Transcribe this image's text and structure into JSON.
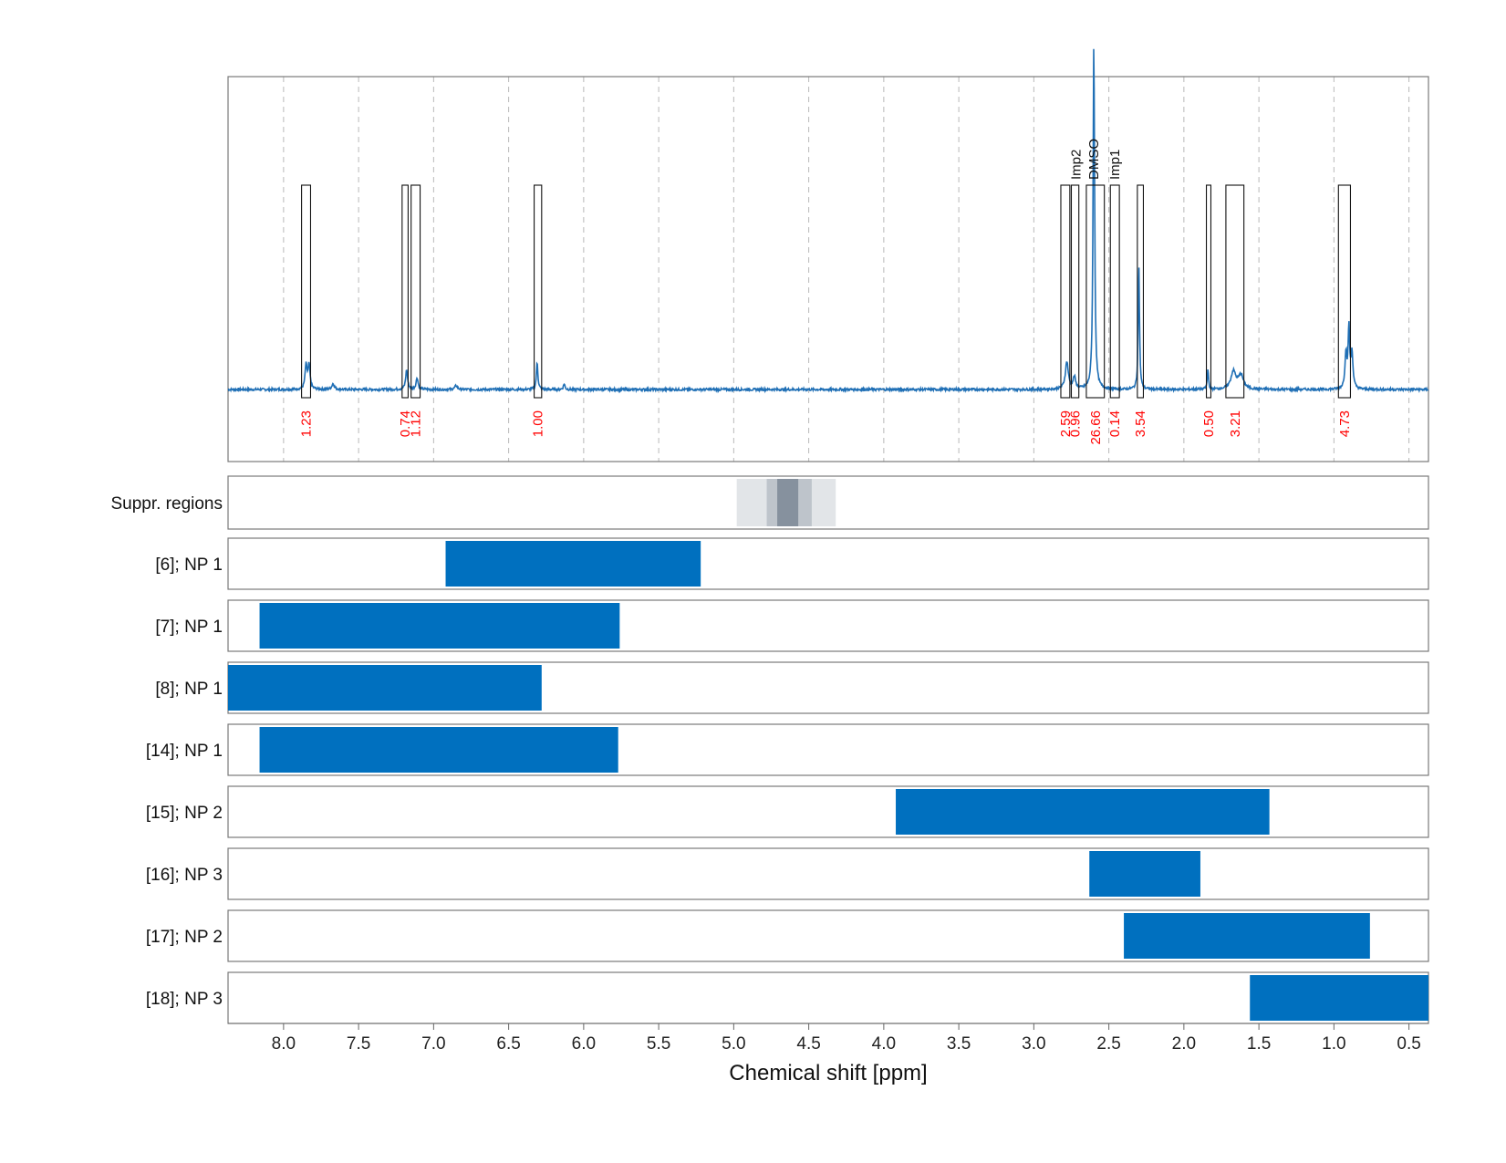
{
  "chart_data": {
    "type": "nmr-spectrum-with-range-tracks",
    "xlabel": "Chemical shift [ppm]",
    "xlim": [
      8.37,
      0.37
    ],
    "xticks": [
      8.0,
      7.5,
      7.0,
      6.5,
      6.0,
      5.5,
      5.0,
      4.5,
      4.0,
      3.5,
      3.0,
      2.5,
      2.0,
      1.5,
      1.0,
      0.5
    ],
    "xtick_labels": [
      "8.0",
      "7.5",
      "7.0",
      "6.5",
      "6.0",
      "5.5",
      "5.0",
      "4.5",
      "4.0",
      "3.5",
      "3.0",
      "2.5",
      "2.0",
      "1.5",
      "1.0",
      "0.5"
    ],
    "line_color": "#1f6fb5",
    "spectrum": {
      "baseline": 0.0,
      "ylim": [
        -0.3,
        1.0
      ],
      "peaks": [
        {
          "ppm": 7.85,
          "height": 0.06,
          "width": 0.008
        },
        {
          "ppm": 7.83,
          "height": 0.06,
          "width": 0.008
        },
        {
          "ppm": 7.67,
          "height": 0.015,
          "width": 0.01
        },
        {
          "ppm": 7.18,
          "height": 0.05,
          "width": 0.008
        },
        {
          "ppm": 7.11,
          "height": 0.03,
          "width": 0.008
        },
        {
          "ppm": 6.85,
          "height": 0.01,
          "width": 0.01
        },
        {
          "ppm": 6.31,
          "height": 0.07,
          "width": 0.006
        },
        {
          "ppm": 6.13,
          "height": 0.015,
          "width": 0.006
        },
        {
          "ppm": 2.78,
          "height": 0.07,
          "width": 0.012
        },
        {
          "ppm": 2.73,
          "height": 0.03,
          "width": 0.01
        },
        {
          "ppm": 2.6,
          "height": 0.88,
          "width": 0.006
        },
        {
          "ppm": 2.3,
          "height": 0.32,
          "width": 0.005
        },
        {
          "ppm": 1.84,
          "height": 0.05,
          "width": 0.005
        },
        {
          "ppm": 1.67,
          "height": 0.045,
          "width": 0.02
        },
        {
          "ppm": 1.62,
          "height": 0.035,
          "width": 0.02
        },
        {
          "ppm": 0.92,
          "height": 0.09,
          "width": 0.008
        },
        {
          "ppm": 0.9,
          "height": 0.15,
          "width": 0.006
        },
        {
          "ppm": 0.88,
          "height": 0.09,
          "width": 0.008
        }
      ]
    },
    "integration_regions": [
      {
        "from": 7.88,
        "to": 7.82,
        "value": "1.23"
      },
      {
        "from": 7.21,
        "to": 7.17,
        "value": "0.74"
      },
      {
        "from": 7.15,
        "to": 7.09,
        "value": "1.12"
      },
      {
        "from": 6.33,
        "to": 6.28,
        "value": "1.00"
      },
      {
        "from": 2.82,
        "to": 2.76,
        "value": "2.59"
      },
      {
        "from": 2.75,
        "to": 2.7,
        "value": "0.96"
      },
      {
        "from": 2.65,
        "to": 2.53,
        "value": "26.66"
      },
      {
        "from": 2.49,
        "to": 2.43,
        "value": "0.14"
      },
      {
        "from": 2.31,
        "to": 2.27,
        "value": "3.54"
      },
      {
        "from": 1.85,
        "to": 1.82,
        "value": "0.50"
      },
      {
        "from": 1.72,
        "to": 1.6,
        "value": "3.21"
      },
      {
        "from": 0.97,
        "to": 0.89,
        "value": "4.73"
      }
    ],
    "peak_annotations": [
      {
        "ppm": 2.72,
        "label": "Imp2"
      },
      {
        "ppm": 2.6,
        "label": "DMSO"
      },
      {
        "ppm": 2.46,
        "label": "Imp1"
      }
    ],
    "suppression_label": "Suppr. regions",
    "suppression_bands": [
      {
        "from": 4.98,
        "to": 4.32,
        "opacity": 0.18
      },
      {
        "from": 4.78,
        "to": 4.48,
        "opacity": 0.28
      },
      {
        "from": 4.71,
        "to": 4.57,
        "opacity": 0.6
      }
    ],
    "suppression_color": "#607080",
    "range_tracks": [
      {
        "label": "[6]; NP 1",
        "from": 6.92,
        "to": 5.22
      },
      {
        "label": "[7]; NP 1",
        "from": 8.16,
        "to": 5.76
      },
      {
        "label": "[8]; NP 1",
        "from": 8.37,
        "to": 6.28
      },
      {
        "label": "[14]; NP 1",
        "from": 8.16,
        "to": 5.77
      },
      {
        "label": "[15]; NP 2",
        "from": 3.92,
        "to": 1.43
      },
      {
        "label": "[16]; NP 3",
        "from": 2.63,
        "to": 1.89
      },
      {
        "label": "[17]; NP 2",
        "from": 2.4,
        "to": 0.76
      },
      {
        "label": "[18]; NP 3",
        "from": 1.56,
        "to": 0.37
      }
    ],
    "track_color": "#0070bf"
  }
}
